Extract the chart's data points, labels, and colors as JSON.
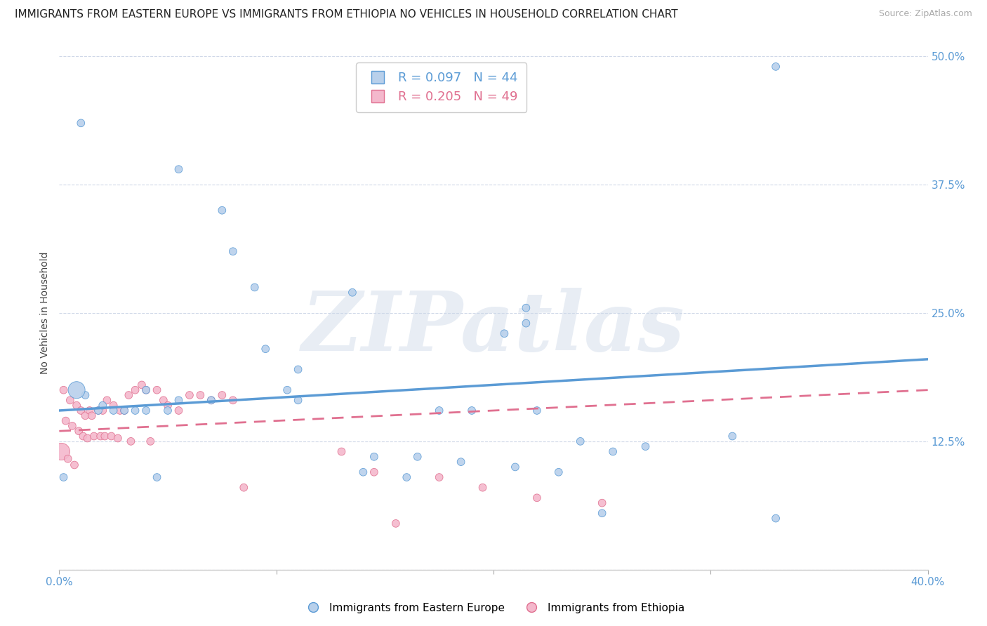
{
  "title": "IMMIGRANTS FROM EASTERN EUROPE VS IMMIGRANTS FROM ETHIOPIA NO VEHICLES IN HOUSEHOLD CORRELATION CHART",
  "source": "Source: ZipAtlas.com",
  "ylabel": "No Vehicles in Household",
  "xlim": [
    0.0,
    0.4
  ],
  "ylim": [
    0.0,
    0.5
  ],
  "yticks": [
    0.0,
    0.125,
    0.25,
    0.375,
    0.5
  ],
  "yticklabels_right": [
    "",
    "12.5%",
    "25.0%",
    "37.5%",
    "50.0%"
  ],
  "legend_r1": "0.097",
  "legend_n1": "44",
  "legend_r2": "0.205",
  "legend_n2": "49",
  "legend_label1": "Immigrants from Eastern Europe",
  "legend_label2": "Immigrants from Ethiopia",
  "color_blue": "#b8d0eb",
  "color_blue_dark": "#5b9bd5",
  "color_pink": "#f4b8cc",
  "color_pink_dark": "#e07090",
  "watermark": "ZIPatlas",
  "blue_scatter": [
    [
      0.01,
      0.435
    ],
    [
      0.33,
      0.49
    ],
    [
      0.055,
      0.39
    ],
    [
      0.075,
      0.35
    ],
    [
      0.08,
      0.31
    ],
    [
      0.09,
      0.275
    ],
    [
      0.135,
      0.27
    ],
    [
      0.215,
      0.255
    ],
    [
      0.215,
      0.24
    ],
    [
      0.205,
      0.23
    ],
    [
      0.095,
      0.215
    ],
    [
      0.11,
      0.195
    ],
    [
      0.105,
      0.175
    ],
    [
      0.11,
      0.165
    ],
    [
      0.04,
      0.175
    ],
    [
      0.055,
      0.165
    ],
    [
      0.07,
      0.165
    ],
    [
      0.04,
      0.155
    ],
    [
      0.05,
      0.155
    ],
    [
      0.035,
      0.155
    ],
    [
      0.03,
      0.155
    ],
    [
      0.025,
      0.155
    ],
    [
      0.02,
      0.16
    ],
    [
      0.018,
      0.155
    ],
    [
      0.012,
      0.17
    ],
    [
      0.008,
      0.175
    ],
    [
      0.175,
      0.155
    ],
    [
      0.19,
      0.155
    ],
    [
      0.22,
      0.155
    ],
    [
      0.24,
      0.125
    ],
    [
      0.255,
      0.115
    ],
    [
      0.27,
      0.12
    ],
    [
      0.31,
      0.13
    ],
    [
      0.145,
      0.11
    ],
    [
      0.165,
      0.11
    ],
    [
      0.185,
      0.105
    ],
    [
      0.21,
      0.1
    ],
    [
      0.23,
      0.095
    ],
    [
      0.14,
      0.095
    ],
    [
      0.16,
      0.09
    ],
    [
      0.25,
      0.055
    ],
    [
      0.33,
      0.05
    ],
    [
      0.045,
      0.09
    ],
    [
      0.002,
      0.09
    ]
  ],
  "blue_sizes": [
    60,
    60,
    60,
    60,
    60,
    60,
    60,
    60,
    60,
    60,
    60,
    60,
    60,
    60,
    60,
    60,
    60,
    60,
    60,
    60,
    60,
    60,
    60,
    60,
    60,
    300,
    60,
    60,
    60,
    60,
    60,
    60,
    60,
    60,
    60,
    60,
    60,
    60,
    60,
    60,
    60,
    60,
    60,
    60
  ],
  "pink_scatter": [
    [
      0.002,
      0.175
    ],
    [
      0.005,
      0.165
    ],
    [
      0.008,
      0.16
    ],
    [
      0.01,
      0.155
    ],
    [
      0.012,
      0.15
    ],
    [
      0.014,
      0.155
    ],
    [
      0.015,
      0.15
    ],
    [
      0.018,
      0.155
    ],
    [
      0.02,
      0.155
    ],
    [
      0.022,
      0.165
    ],
    [
      0.025,
      0.16
    ],
    [
      0.028,
      0.155
    ],
    [
      0.03,
      0.155
    ],
    [
      0.032,
      0.17
    ],
    [
      0.035,
      0.175
    ],
    [
      0.038,
      0.18
    ],
    [
      0.04,
      0.175
    ],
    [
      0.045,
      0.175
    ],
    [
      0.048,
      0.165
    ],
    [
      0.05,
      0.16
    ],
    [
      0.055,
      0.155
    ],
    [
      0.06,
      0.17
    ],
    [
      0.065,
      0.17
    ],
    [
      0.07,
      0.165
    ],
    [
      0.075,
      0.17
    ],
    [
      0.08,
      0.165
    ],
    [
      0.003,
      0.145
    ],
    [
      0.006,
      0.14
    ],
    [
      0.009,
      0.135
    ],
    [
      0.011,
      0.13
    ],
    [
      0.013,
      0.128
    ],
    [
      0.016,
      0.13
    ],
    [
      0.019,
      0.13
    ],
    [
      0.021,
      0.13
    ],
    [
      0.024,
      0.13
    ],
    [
      0.027,
      0.128
    ],
    [
      0.033,
      0.125
    ],
    [
      0.042,
      0.125
    ],
    [
      0.13,
      0.115
    ],
    [
      0.145,
      0.095
    ],
    [
      0.175,
      0.09
    ],
    [
      0.195,
      0.08
    ],
    [
      0.22,
      0.07
    ],
    [
      0.25,
      0.065
    ],
    [
      0.001,
      0.115
    ],
    [
      0.004,
      0.108
    ],
    [
      0.007,
      0.102
    ],
    [
      0.085,
      0.08
    ],
    [
      0.155,
      0.045
    ]
  ],
  "pink_sizes": [
    60,
    60,
    60,
    60,
    60,
    60,
    60,
    60,
    60,
    60,
    60,
    60,
    60,
    60,
    60,
    60,
    60,
    60,
    60,
    60,
    60,
    60,
    60,
    60,
    60,
    60,
    60,
    60,
    60,
    60,
    60,
    60,
    60,
    60,
    60,
    60,
    60,
    60,
    60,
    60,
    60,
    60,
    60,
    60,
    300,
    60,
    60,
    60,
    60
  ],
  "blue_trend": [
    0.0,
    0.155,
    0.4,
    0.205
  ],
  "pink_trend": [
    0.0,
    0.135,
    0.4,
    0.175
  ],
  "grid_color": "#d0d8e8",
  "bg_color": "#ffffff",
  "title_fontsize": 11,
  "tick_fontsize": 11,
  "ylabel_fontsize": 10
}
